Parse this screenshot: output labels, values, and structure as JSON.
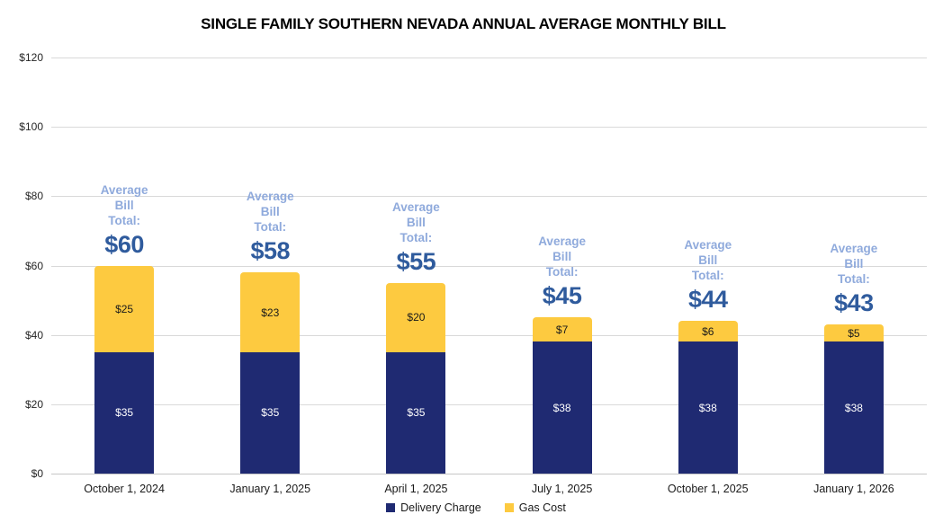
{
  "chart_data": {
    "type": "bar",
    "stacked": true,
    "title": "SINGLE FAMILY SOUTHERN NEVADA ANNUAL AVERAGE MONTHLY BILL",
    "categories": [
      "October 1, 2024",
      "January 1, 2025",
      "April 1, 2025",
      "July 1, 2025",
      "October 1, 2025",
      "January 1, 2026"
    ],
    "series": [
      {
        "name": "Delivery Charge",
        "color": "#1F2A72",
        "label_text_color": "#FFFFFF",
        "values": [
          35,
          35,
          35,
          38,
          38,
          38
        ],
        "value_labels": [
          "$35",
          "$35",
          "$35",
          "$38",
          "$38",
          "$38"
        ]
      },
      {
        "name": "Gas Cost",
        "color": "#FDCA40",
        "label_text_color": "#1A1A1A",
        "values": [
          25,
          23,
          20,
          7,
          6,
          5
        ],
        "value_labels": [
          "$25",
          "$23",
          "$20",
          "$7",
          "$6",
          "$5"
        ]
      }
    ],
    "totals": [
      60,
      58,
      55,
      45,
      44,
      43
    ],
    "total_labels": [
      "$60",
      "$58",
      "$55",
      "$45",
      "$44",
      "$43"
    ],
    "annotation_lines": [
      "Average",
      "Bill",
      "Total:"
    ],
    "y_axis": {
      "min": 0,
      "max": 120,
      "step": 20,
      "ticks": [
        {
          "label": "$0",
          "value": 0
        },
        {
          "label": "$20",
          "value": 20
        },
        {
          "label": "$40",
          "value": 40
        },
        {
          "label": "$60",
          "value": 60
        },
        {
          "label": "$80",
          "value": 80
        },
        {
          "label": "$100",
          "value": 100
        },
        {
          "label": "$120",
          "value": 120
        }
      ]
    },
    "legend": {
      "position": "bottom",
      "items": [
        "Delivery Charge",
        "Gas Cost"
      ]
    },
    "grid": "horizontal",
    "colors": {
      "annotation_text": "#8FAADC",
      "total_text": "#2F5B9D",
      "gridline": "#D9D9D9",
      "axis_text": "#262626",
      "x_label_text": "#1A1A1A",
      "title_text": "#000000",
      "background": "#FFFFFF"
    }
  }
}
